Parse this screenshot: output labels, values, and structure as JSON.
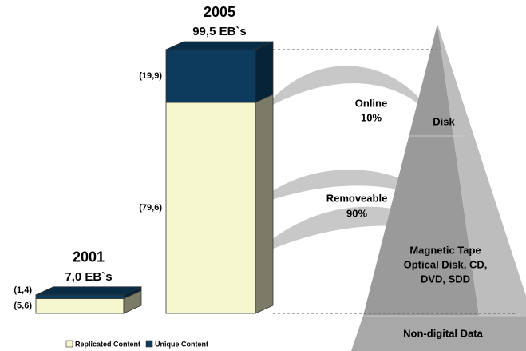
{
  "chart_data": {
    "type": "bar",
    "stacked": true,
    "categories": [
      "2001",
      "2005"
    ],
    "totals": [
      7.0,
      99.5
    ],
    "total_labels": [
      "7,0 EB`s",
      "99,5 EB`s"
    ],
    "series": [
      {
        "name": "Replicated Content",
        "color": "#f6f6cf",
        "values": [
          5.6,
          79.6
        ],
        "value_labels": [
          "(5,6)",
          "(79,6)"
        ]
      },
      {
        "name": "Unique Content",
        "color": "#0c3b5e",
        "values": [
          1.4,
          19.9
        ],
        "value_labels": [
          "(1,4)",
          "(19,9)"
        ]
      }
    ]
  },
  "pyramid": {
    "online": [
      "Online",
      "10%"
    ],
    "removeable": [
      "Removeable",
      "90%"
    ],
    "levels": [
      [
        "Disk"
      ],
      [
        "Magnetic Tape",
        "Optical Disk, CD,",
        "DVD, SDD"
      ],
      [
        "Non-digital Data"
      ]
    ]
  }
}
